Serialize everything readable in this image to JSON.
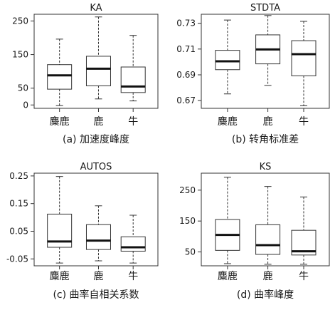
{
  "chart_data": [
    {
      "type": "box",
      "title": "KA",
      "caption": "(a) 加速度峰度",
      "categories": [
        "麋鹿",
        "鹿",
        "牛"
      ],
      "ylim": [
        -10,
        270
      ],
      "yticks": [
        0,
        50,
        150,
        250
      ],
      "ytick_labels": [
        "0",
        "50",
        "150",
        "250"
      ],
      "boxes": [
        {
          "min": -2,
          "q1": 47,
          "median": 88,
          "q3": 120,
          "max": 196
        },
        {
          "min": 18,
          "q1": 57,
          "median": 108,
          "q3": 145,
          "max": 262
        },
        {
          "min": 12,
          "q1": 37,
          "median": 55,
          "q3": 113,
          "max": 207
        }
      ]
    },
    {
      "type": "box",
      "title": "STDTA",
      "caption": "(b) 转角标准差",
      "categories": [
        "麋鹿",
        "鹿",
        "牛"
      ],
      "ylim": [
        0.664,
        0.737
      ],
      "yticks": [
        0.67,
        0.69,
        0.71,
        0.73
      ],
      "ytick_labels": [
        "0.67",
        "0.69",
        "0.71",
        "0.73"
      ],
      "boxes": [
        {
          "min": 0.6752,
          "q1": 0.694,
          "median": 0.7005,
          "q3": 0.709,
          "max": 0.7325
        },
        {
          "min": 0.6818,
          "q1": 0.6985,
          "median": 0.7097,
          "q3": 0.721,
          "max": 0.736
        },
        {
          "min": 0.666,
          "q1": 0.6892,
          "median": 0.706,
          "q3": 0.7165,
          "max": 0.7315
        }
      ]
    },
    {
      "type": "box",
      "title": "AUTOS",
      "caption": "(c) 曲率自相关系数",
      "categories": [
        "麋鹿",
        "鹿",
        "牛"
      ],
      "ylim": [
        -0.075,
        0.26
      ],
      "yticks": [
        -0.05,
        0.05,
        0.15,
        0.25
      ],
      "ytick_labels": [
        "-0.05",
        "0.05",
        "0.15",
        "0.25"
      ],
      "boxes": [
        {
          "min": -0.065,
          "q1": -0.008,
          "median": 0.013,
          "q3": 0.112,
          "max": 0.248
        },
        {
          "min": -0.057,
          "q1": -0.016,
          "median": 0.016,
          "q3": 0.074,
          "max": 0.142
        },
        {
          "min": -0.065,
          "q1": -0.022,
          "median": -0.008,
          "q3": 0.03,
          "max": 0.108
        }
      ]
    },
    {
      "type": "box",
      "title": "KS",
      "caption": "(d) 曲率峰度",
      "categories": [
        "麋鹿",
        "鹿",
        "牛"
      ],
      "ylim": [
        5,
        305
      ],
      "yticks": [
        50,
        150,
        250
      ],
      "ytick_labels": [
        "50",
        "150",
        "250"
      ],
      "boxes": [
        {
          "min": 12,
          "q1": 55,
          "median": 105,
          "q3": 155,
          "max": 292
        },
        {
          "min": 10,
          "q1": 42,
          "median": 72,
          "q3": 138,
          "max": 262
        },
        {
          "min": 10,
          "q1": 40,
          "median": 52,
          "q3": 120,
          "max": 228
        }
      ]
    }
  ]
}
